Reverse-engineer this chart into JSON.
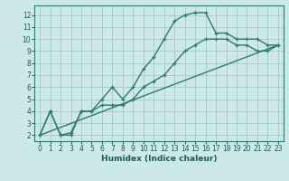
{
  "xlabel": "Humidex (Indice chaleur)",
  "bg_color": "#cce8e8",
  "grid_color": "#aacccc",
  "line_color": "#2e7b6e",
  "xlim": [
    -0.5,
    23.5
  ],
  "ylim": [
    1.5,
    12.8
  ],
  "xticks": [
    0,
    1,
    2,
    3,
    4,
    5,
    6,
    7,
    8,
    9,
    10,
    11,
    12,
    13,
    14,
    15,
    16,
    17,
    18,
    19,
    20,
    21,
    22,
    23
  ],
  "yticks": [
    2,
    3,
    4,
    5,
    6,
    7,
    8,
    9,
    10,
    11,
    12
  ],
  "line1_x": [
    0,
    1,
    2,
    3,
    4,
    5,
    6,
    7,
    8,
    9,
    10,
    11,
    12,
    13,
    14,
    15,
    16,
    17,
    18,
    19,
    20,
    21,
    22,
    23
  ],
  "line1_y": [
    2,
    4,
    2,
    2,
    4,
    4,
    5,
    6,
    5,
    6,
    7.5,
    8.5,
    10,
    11.5,
    12,
    12.2,
    12.2,
    10.5,
    10.5,
    10,
    10,
    10,
    9.5,
    9.5
  ],
  "line2_x": [
    0,
    1,
    2,
    3,
    4,
    5,
    6,
    7,
    8,
    9,
    10,
    11,
    12,
    13,
    14,
    15,
    16,
    17,
    18,
    19,
    20,
    21,
    22,
    23
  ],
  "line2_y": [
    2,
    4,
    2,
    2.2,
    4,
    4,
    4.5,
    4.5,
    4.5,
    5,
    6,
    6.5,
    7,
    8,
    9,
    9.5,
    10,
    10,
    10,
    9.5,
    9.5,
    9,
    9,
    9.5
  ],
  "line3_x": [
    0,
    23
  ],
  "line3_y": [
    2,
    9.5
  ],
  "tick_fontsize": 5.5,
  "xlabel_fontsize": 6.5
}
